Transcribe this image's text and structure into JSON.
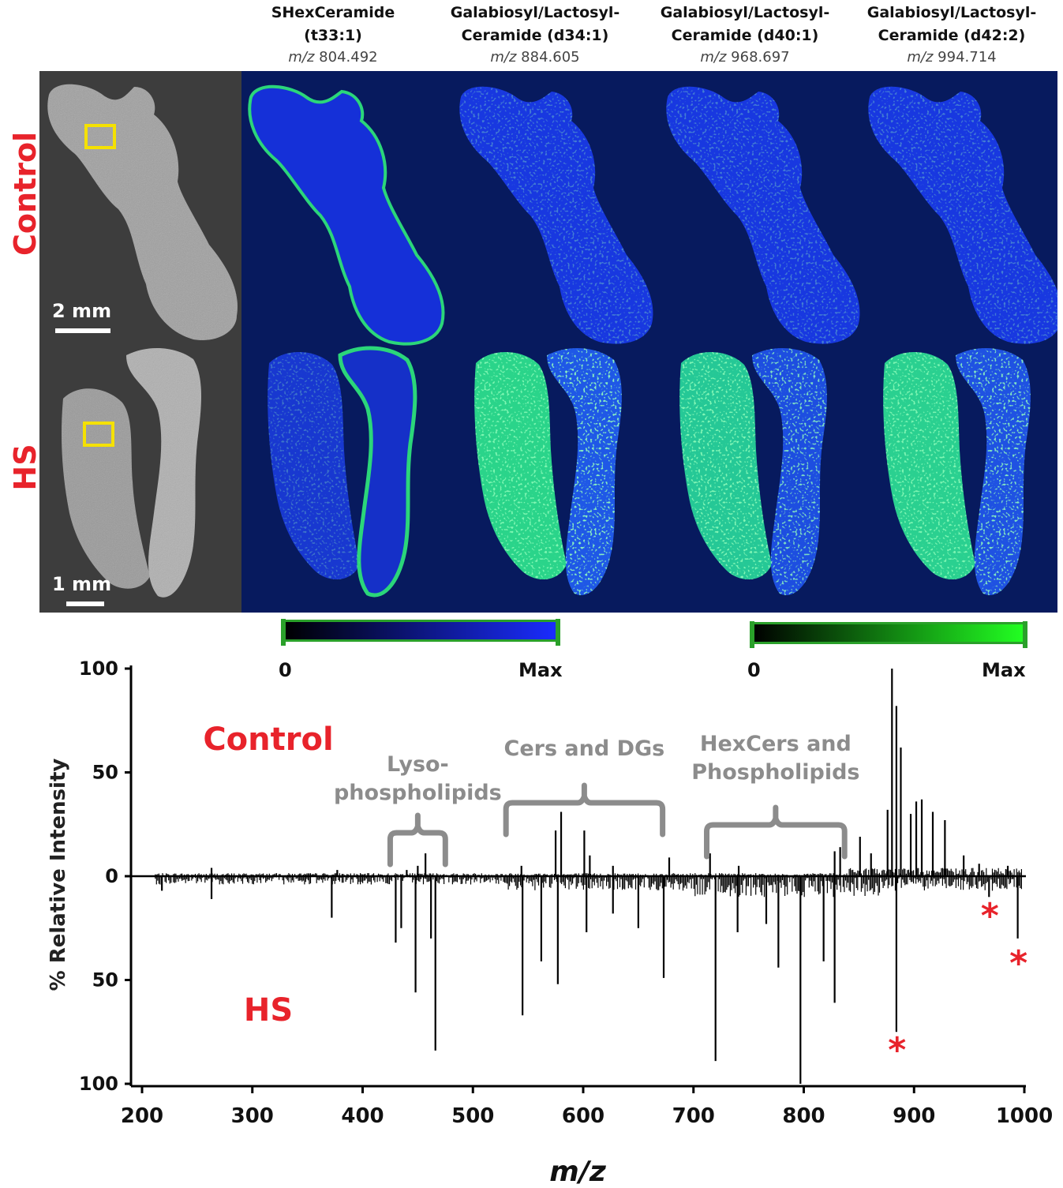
{
  "panels": [
    {
      "name": "SHexCeramide",
      "sub": "(t33:1)",
      "mz_prefix": "m/z",
      "mz": "804.492"
    },
    {
      "name": "Galabiosyl/Lactosyl-",
      "sub": "Ceramide (d34:1)",
      "mz_prefix": "m/z",
      "mz": "884.605"
    },
    {
      "name": "Galabiosyl/Lactosyl-",
      "sub": "Ceramide (d40:1)",
      "mz_prefix": "m/z",
      "mz": "968.697"
    },
    {
      "name": "Galabiosyl/Lactosyl-",
      "sub": "Ceramide (d42:2)",
      "mz_prefix": "m/z",
      "mz": "994.714"
    }
  ],
  "rows": {
    "top": "Control",
    "bottom": "HS"
  },
  "scalebars": {
    "top": "2 mm",
    "bottom": "1 mm"
  },
  "colorbars": [
    {
      "min": "0",
      "max": "Max",
      "from": "#000000",
      "to": "#1a2cff"
    },
    {
      "min": "0",
      "max": "Max",
      "from": "#000000",
      "to": "#22ff22"
    }
  ],
  "chart_data": {
    "type": "bar",
    "title": "",
    "xlabel": "m/z",
    "ylabel": "% Relative Intensity",
    "xlim": [
      200,
      1000
    ],
    "ylim": [
      -100,
      100
    ],
    "xticks": [
      200,
      300,
      400,
      500,
      600,
      700,
      800,
      900,
      1000
    ],
    "yticks_top": [
      "100",
      "50",
      "0"
    ],
    "yticks_bottom": [
      "50",
      "100"
    ],
    "series_labels": {
      "top": "Control",
      "bottom": "HS"
    },
    "annotations": [
      {
        "text_lines": [
          "Lyso-",
          "phospholipids"
        ],
        "x_range": [
          425,
          475
        ]
      },
      {
        "text_lines": [
          "Cers and DGs"
        ],
        "x_range": [
          530,
          672
        ]
      },
      {
        "text_lines": [
          "HexCers and",
          "Phospholipids"
        ],
        "x_range": [
          712,
          837
        ]
      }
    ],
    "markers": [
      {
        "symbol": "*",
        "x": 884.6
      },
      {
        "symbol": "*",
        "x": 968.7
      },
      {
        "symbol": "*",
        "x": 994.7
      }
    ],
    "control_peaks": [
      [
        263,
        4
      ],
      [
        377,
        3
      ],
      [
        440,
        3
      ],
      [
        450,
        5
      ],
      [
        457,
        11
      ],
      [
        544,
        5
      ],
      [
        575,
        22
      ],
      [
        580,
        31
      ],
      [
        601,
        22
      ],
      [
        606,
        10
      ],
      [
        627,
        5
      ],
      [
        678,
        9
      ],
      [
        715,
        11
      ],
      [
        741,
        5
      ],
      [
        828,
        12
      ],
      [
        833,
        14
      ],
      [
        851,
        19
      ],
      [
        861,
        11
      ],
      [
        876,
        32
      ],
      [
        880,
        100
      ],
      [
        884,
        82
      ],
      [
        888,
        62
      ],
      [
        897,
        30
      ],
      [
        902,
        36
      ],
      [
        907,
        37
      ],
      [
        917,
        31
      ],
      [
        928,
        27
      ],
      [
        945,
        10
      ],
      [
        959,
        6
      ],
      [
        985,
        5
      ]
    ],
    "hs_peaks": [
      [
        218,
        7
      ],
      [
        263,
        11
      ],
      [
        372,
        20
      ],
      [
        430,
        32
      ],
      [
        435,
        25
      ],
      [
        448,
        56
      ],
      [
        462,
        30
      ],
      [
        466,
        84
      ],
      [
        545,
        67
      ],
      [
        562,
        41
      ],
      [
        577,
        52
      ],
      [
        603,
        27
      ],
      [
        627,
        18
      ],
      [
        650,
        25
      ],
      [
        673,
        49
      ],
      [
        720,
        89
      ],
      [
        740,
        27
      ],
      [
        766,
        23
      ],
      [
        777,
        44
      ],
      [
        797,
        100
      ],
      [
        818,
        41
      ],
      [
        828,
        61
      ],
      [
        884,
        75
      ],
      [
        968,
        10
      ],
      [
        994,
        30
      ]
    ]
  }
}
